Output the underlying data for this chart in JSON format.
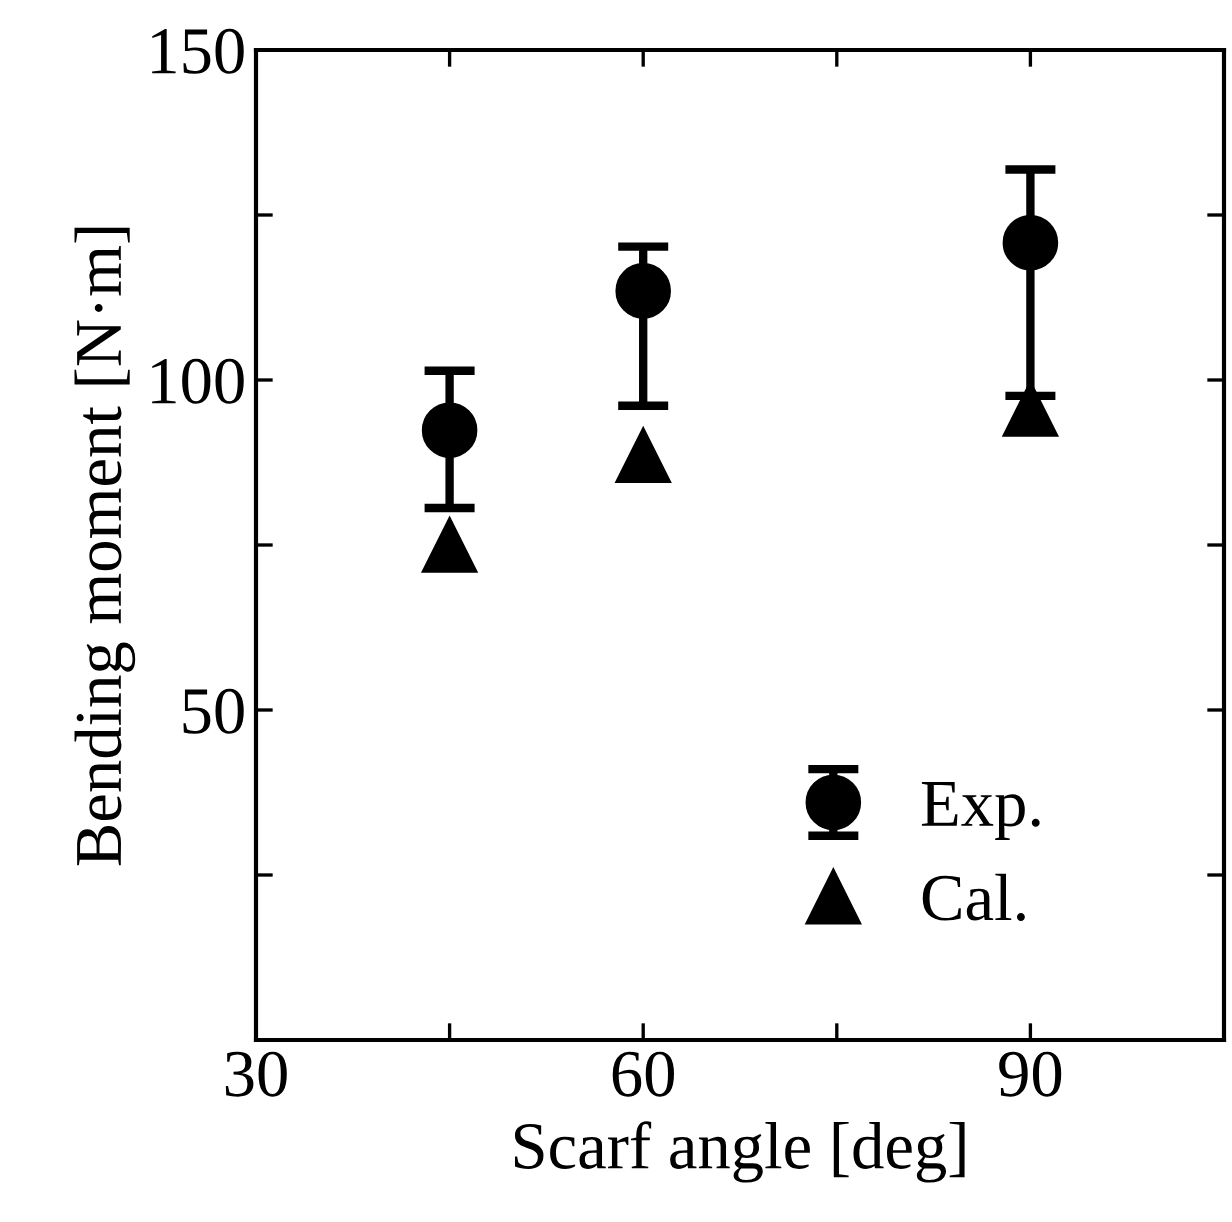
{
  "chart_data": {
    "type": "scatter",
    "xlabel": "Scarf angle [deg]",
    "ylabel": "Bending moment [N·m]",
    "x": [
      45,
      60,
      90
    ],
    "series": [
      {
        "name": "Exp.",
        "color": "#000000",
        "marker": "circle",
        "values": [
          92.4,
          113.5,
          120.8
        ],
        "errors": [
          [
            80.6,
            101.4
          ],
          [
            96.1,
            120.2
          ],
          [
            97.6,
            131.9
          ]
        ]
      },
      {
        "name": "Cal.",
        "color": "#000000",
        "marker": "triangle",
        "values": [
          75.0,
          88.6,
          95.6
        ]
      }
    ],
    "xlim": [
      30,
      105
    ],
    "xticks": [
      30,
      {
        "value": 45,
        "label": null
      },
      60,
      {
        "value": 75,
        "label": null
      },
      90
    ],
    "ylim": [
      0,
      150
    ],
    "yticks": [
      {
        "value": 0,
        "label": null
      },
      {
        "value": 25,
        "label": null
      },
      50,
      {
        "value": 75,
        "label": null
      },
      100,
      {
        "value": 125,
        "label": null
      },
      150
    ],
    "legend": "bottom right"
  }
}
